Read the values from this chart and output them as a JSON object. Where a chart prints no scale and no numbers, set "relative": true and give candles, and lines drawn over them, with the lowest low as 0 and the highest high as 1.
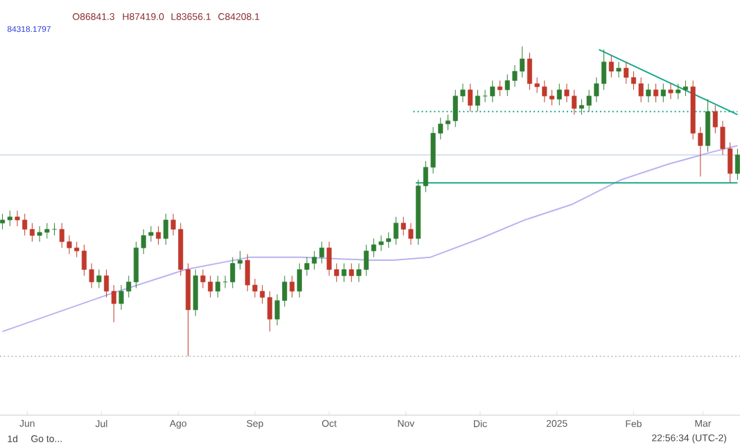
{
  "chart_data": {
    "type": "candlestick",
    "relative": true,
    "x": [
      "2024-05-22",
      "2024-05-25",
      "2024-05-28",
      "2024-05-31",
      "2024-06-03",
      "2024-06-06",
      "2024-06-09",
      "2024-06-12",
      "2024-06-15",
      "2024-06-18",
      "2024-06-21",
      "2024-06-24",
      "2024-06-27",
      "2024-06-30",
      "2024-07-03",
      "2024-07-06",
      "2024-07-09",
      "2024-07-12",
      "2024-07-15",
      "2024-07-18",
      "2024-07-21",
      "2024-07-24",
      "2024-07-27",
      "2024-07-30",
      "2024-08-02",
      "2024-08-05",
      "2024-08-08",
      "2024-08-11",
      "2024-08-14",
      "2024-08-17",
      "2024-08-20",
      "2024-08-23",
      "2024-08-26",
      "2024-08-29",
      "2024-09-01",
      "2024-09-04",
      "2024-09-07",
      "2024-09-10",
      "2024-09-13",
      "2024-09-16",
      "2024-09-19",
      "2024-09-22",
      "2024-09-25",
      "2024-09-28",
      "2024-10-01",
      "2024-10-04",
      "2024-10-07",
      "2024-10-10",
      "2024-10-13",
      "2024-10-16",
      "2024-10-19",
      "2024-10-22",
      "2024-10-25",
      "2024-10-28",
      "2024-10-31",
      "2024-11-03",
      "2024-11-06",
      "2024-11-09",
      "2024-11-12",
      "2024-11-15",
      "2024-11-18",
      "2024-11-21",
      "2024-11-24",
      "2024-11-27",
      "2024-11-30",
      "2024-12-03",
      "2024-12-06",
      "2024-12-09",
      "2024-12-12",
      "2024-12-15",
      "2024-12-18",
      "2024-12-21",
      "2024-12-24",
      "2024-12-27",
      "2024-12-30",
      "2025-01-02",
      "2025-01-05",
      "2025-01-08",
      "2025-01-11",
      "2025-01-14",
      "2025-01-17",
      "2025-01-20",
      "2025-01-23",
      "2025-01-26",
      "2025-01-29",
      "2025-02-01",
      "2025-02-04",
      "2025-02-07",
      "2025-02-10",
      "2025-02-13",
      "2025-02-16",
      "2025-02-19",
      "2025-02-22",
      "2025-02-25",
      "2025-02-28",
      "2025-03-03",
      "2025-03-06",
      "2025-03-09",
      "2025-03-12",
      "2025-03-15"
    ],
    "ohlc": [
      [
        0.43,
        0.46,
        0.41,
        0.44
      ],
      [
        0.44,
        0.47,
        0.42,
        0.45
      ],
      [
        0.45,
        0.47,
        0.42,
        0.44
      ],
      [
        0.44,
        0.46,
        0.39,
        0.41
      ],
      [
        0.41,
        0.43,
        0.37,
        0.39
      ],
      [
        0.39,
        0.42,
        0.37,
        0.4
      ],
      [
        0.4,
        0.43,
        0.38,
        0.41
      ],
      [
        0.41,
        0.43,
        0.39,
        0.41
      ],
      [
        0.41,
        0.43,
        0.35,
        0.37
      ],
      [
        0.37,
        0.39,
        0.33,
        0.35
      ],
      [
        0.35,
        0.37,
        0.32,
        0.34
      ],
      [
        0.34,
        0.36,
        0.26,
        0.28
      ],
      [
        0.28,
        0.3,
        0.22,
        0.24
      ],
      [
        0.24,
        0.28,
        0.22,
        0.26
      ],
      [
        0.26,
        0.28,
        0.19,
        0.21
      ],
      [
        0.21,
        0.23,
        0.11,
        0.17
      ],
      [
        0.17,
        0.23,
        0.15,
        0.21
      ],
      [
        0.21,
        0.26,
        0.19,
        0.24
      ],
      [
        0.24,
        0.37,
        0.22,
        0.35
      ],
      [
        0.35,
        0.41,
        0.33,
        0.39
      ],
      [
        0.39,
        0.42,
        0.37,
        0.4
      ],
      [
        0.4,
        0.42,
        0.36,
        0.38
      ],
      [
        0.38,
        0.46,
        0.36,
        0.44
      ],
      [
        0.44,
        0.46,
        0.39,
        0.41
      ],
      [
        0.41,
        0.43,
        0.26,
        0.28
      ],
      [
        0.28,
        0.3,
        0,
        0.15
      ],
      [
        0.15,
        0.28,
        0.13,
        0.26
      ],
      [
        0.26,
        0.28,
        0.22,
        0.24
      ],
      [
        0.24,
        0.26,
        0.19,
        0.21
      ],
      [
        0.21,
        0.26,
        0.19,
        0.24
      ],
      [
        0.24,
        0.26,
        0.22,
        0.24
      ],
      [
        0.24,
        0.32,
        0.22,
        0.3
      ],
      [
        0.3,
        0.34,
        0.28,
        0.31
      ],
      [
        0.31,
        0.33,
        0.21,
        0.23
      ],
      [
        0.23,
        0.25,
        0.19,
        0.21
      ],
      [
        0.21,
        0.23,
        0.17,
        0.19
      ],
      [
        0.19,
        0.21,
        0.08,
        0.12
      ],
      [
        0.12,
        0.2,
        0.1,
        0.18
      ],
      [
        0.18,
        0.26,
        0.16,
        0.24
      ],
      [
        0.24,
        0.26,
        0.19,
        0.21
      ],
      [
        0.21,
        0.3,
        0.19,
        0.28
      ],
      [
        0.28,
        0.32,
        0.26,
        0.3
      ],
      [
        0.3,
        0.34,
        0.28,
        0.32
      ],
      [
        0.32,
        0.37,
        0.3,
        0.35
      ],
      [
        0.35,
        0.37,
        0.26,
        0.28
      ],
      [
        0.28,
        0.3,
        0.24,
        0.26
      ],
      [
        0.26,
        0.3,
        0.24,
        0.28
      ],
      [
        0.28,
        0.3,
        0.24,
        0.26
      ],
      [
        0.26,
        0.3,
        0.24,
        0.28
      ],
      [
        0.28,
        0.36,
        0.26,
        0.34
      ],
      [
        0.34,
        0.38,
        0.32,
        0.36
      ],
      [
        0.36,
        0.39,
        0.34,
        0.37
      ],
      [
        0.37,
        0.4,
        0.35,
        0.38
      ],
      [
        0.38,
        0.45,
        0.36,
        0.43
      ],
      [
        0.43,
        0.45,
        0.39,
        0.41
      ],
      [
        0.41,
        0.43,
        0.36,
        0.38
      ],
      [
        0.38,
        0.57,
        0.36,
        0.55
      ],
      [
        0.55,
        0.63,
        0.53,
        0.61
      ],
      [
        0.61,
        0.74,
        0.59,
        0.72
      ],
      [
        0.72,
        0.77,
        0.7,
        0.75
      ],
      [
        0.75,
        0.78,
        0.73,
        0.76
      ],
      [
        0.76,
        0.86,
        0.74,
        0.84
      ],
      [
        0.84,
        0.88,
        0.82,
        0.86
      ],
      [
        0.86,
        0.88,
        0.79,
        0.81
      ],
      [
        0.81,
        0.86,
        0.79,
        0.84
      ],
      [
        0.84,
        0.86,
        0.82,
        0.84
      ],
      [
        0.84,
        0.89,
        0.82,
        0.87
      ],
      [
        0.87,
        0.89,
        0.84,
        0.86
      ],
      [
        0.86,
        0.91,
        0.84,
        0.89
      ],
      [
        0.89,
        0.94,
        0.87,
        0.92
      ],
      [
        0.92,
        1,
        0.9,
        0.96
      ],
      [
        0.96,
        0.98,
        0.86,
        0.88
      ],
      [
        0.88,
        0.9,
        0.85,
        0.87
      ],
      [
        0.87,
        0.89,
        0.82,
        0.84
      ],
      [
        0.84,
        0.86,
        0.81,
        0.83
      ],
      [
        0.83,
        0.88,
        0.81,
        0.86
      ],
      [
        0.86,
        0.88,
        0.82,
        0.84
      ],
      [
        0.84,
        0.86,
        0.78,
        0.8
      ],
      [
        0.8,
        0.83,
        0.78,
        0.81
      ],
      [
        0.81,
        0.86,
        0.79,
        0.84
      ],
      [
        0.84,
        0.9,
        0.82,
        0.88
      ],
      [
        0.88,
        0.99,
        0.86,
        0.95
      ],
      [
        0.95,
        0.97,
        0.9,
        0.92
      ],
      [
        0.92,
        0.95,
        0.9,
        0.93
      ],
      [
        0.93,
        0.95,
        0.88,
        0.9
      ],
      [
        0.9,
        0.92,
        0.86,
        0.88
      ],
      [
        0.88,
        0.9,
        0.82,
        0.84
      ],
      [
        0.84,
        0.88,
        0.82,
        0.86
      ],
      [
        0.86,
        0.88,
        0.82,
        0.84
      ],
      [
        0.84,
        0.88,
        0.82,
        0.86
      ],
      [
        0.86,
        0.88,
        0.83,
        0.85
      ],
      [
        0.85,
        0.88,
        0.83,
        0.86
      ],
      [
        0.86,
        0.89,
        0.84,
        0.87
      ],
      [
        0.87,
        0.89,
        0.7,
        0.72
      ],
      [
        0.72,
        0.74,
        0.58,
        0.68
      ],
      [
        0.68,
        0.83,
        0.66,
        0.79
      ],
      [
        0.79,
        0.81,
        0.72,
        0.74
      ],
      [
        0.74,
        0.76,
        0.65,
        0.67
      ],
      [
        0.67,
        0.69,
        0.56,
        0.59
      ],
      [
        0.59,
        0.67,
        0.57,
        0.65
      ]
    ],
    "series": [
      {
        "type": "line",
        "color": "#b8b4f0",
        "line_style": "solid",
        "x": [
          "2024-05-22",
          "2024-07-04",
          "2024-08-04",
          "2024-08-30",
          "2024-09-20",
          "2024-10-18",
          "2024-10-27",
          "2024-11-11",
          "2024-12-01",
          "2024-12-19",
          "2025-01-07",
          "2025-01-27",
          "2025-02-15",
          "2025-03-05",
          "2025-03-15"
        ],
        "values": [
          0.08,
          0.2,
          0.28,
          0.32,
          0.32,
          0.31,
          0.31,
          0.32,
          0.38,
          0.44,
          0.49,
          0.57,
          0.62,
          0.66,
          0.68
        ]
      },
      {
        "type": "line",
        "color": "#1aa88a",
        "line_style": "solid",
        "x": [
          "2025-01-18",
          "2025-03-15"
        ],
        "values": [
          0.99,
          0.78
        ]
      },
      {
        "type": "line",
        "color": "#1aa88a",
        "line_style": "dotted",
        "x": [
          "2024-11-04",
          "2025-03-15"
        ],
        "values": [
          0.79,
          0.79
        ]
      },
      {
        "type": "line",
        "color": "#1aa88a",
        "line_style": "solid",
        "x": [
          "2024-11-05",
          "2025-03-15"
        ],
        "values": [
          0.56,
          0.56
        ]
      }
    ],
    "ref_lines": [
      {
        "axis": "y",
        "value": 0.65,
        "color": "#d4dcea",
        "line_style": "solid"
      },
      {
        "axis": "y",
        "value": 0,
        "color": "#b0b0b0",
        "line_style": "dotted"
      }
    ],
    "xlim": [
      "2024-05-21",
      "2025-03-16"
    ],
    "xticks": [
      {
        "value": "2024-06-01",
        "label": "Jun"
      },
      {
        "value": "2024-07-01",
        "label": "Jul"
      },
      {
        "value": "2024-08-01",
        "label": "Ago"
      },
      {
        "value": "2024-09-01",
        "label": "Sep"
      },
      {
        "value": "2024-10-01",
        "label": "Oct"
      },
      {
        "value": "2024-11-01",
        "label": "Nov"
      },
      {
        "value": "2024-12-01",
        "label": "Dic"
      },
      {
        "value": "2025-01-01",
        "label": "2025"
      },
      {
        "value": "2025-02-01",
        "label": "Feb"
      },
      {
        "value": "2025-03-01",
        "label": "Mar"
      }
    ],
    "annotations": [
      "O86841.3",
      "H87419.0",
      "L83656.1",
      "C84208.1",
      "84318.1797",
      "1d",
      "Go to...",
      "22:56:34 (UTC-2)"
    ]
  }
}
